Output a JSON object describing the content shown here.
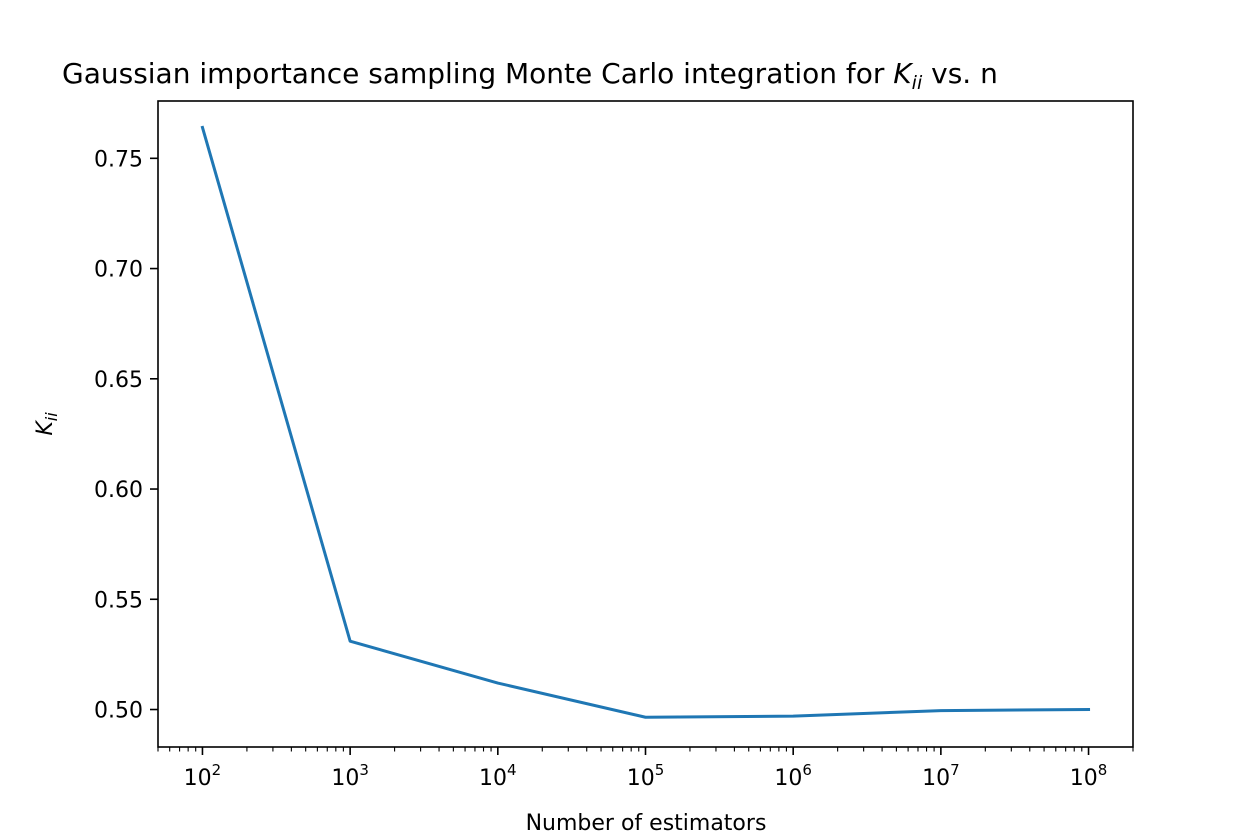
{
  "chart_data": {
    "type": "line",
    "title": {
      "prefix": "Gaussian importance sampling Monte Carlo integration for ",
      "var_main": "K",
      "var_sub": "ii",
      "suffix": " vs. n"
    },
    "xlabel": "Number of estimators",
    "ylabel": {
      "main": "K",
      "sub": "ii"
    },
    "x_scale": "log",
    "x_tick_base": "10",
    "x_tick_exponents": [
      "2",
      "3",
      "4",
      "5",
      "6",
      "7",
      "8"
    ],
    "y_ticks": [
      "0.50",
      "0.55",
      "0.60",
      "0.65",
      "0.70",
      "0.75"
    ],
    "xlim": [
      50,
      200000000
    ],
    "ylim": [
      0.483,
      0.776
    ],
    "grid": false,
    "series": [
      {
        "color": "#1f77b4",
        "x": [
          100,
          1000,
          10000,
          100000,
          1000000,
          10000000,
          100000000
        ],
        "y": [
          0.764,
          0.531,
          0.512,
          0.4965,
          0.497,
          0.4995,
          0.5
        ]
      }
    ]
  }
}
